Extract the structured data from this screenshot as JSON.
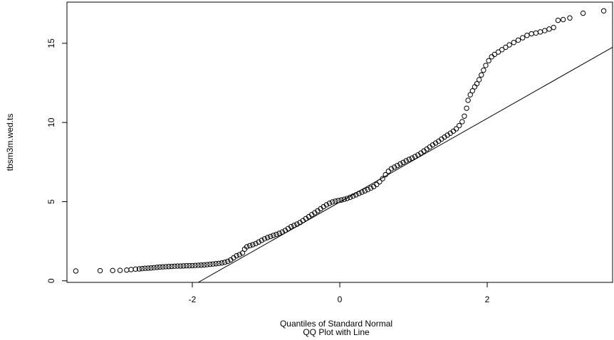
{
  "chart_data": {
    "type": "scatter",
    "title": "",
    "xlabel": "Quantiles of Standard Normal",
    "sublabel": "QQ Plot with Line",
    "ylabel": "tbsm3m.wed.ts",
    "xlim": [
      -3.7,
      3.7
    ],
    "ylim": [
      -0.1,
      17.6
    ],
    "x_ticks": [
      -2,
      0,
      2
    ],
    "y_ticks": [
      0,
      5,
      10,
      15
    ],
    "grid": false,
    "legend": "none",
    "colors": {
      "points": "#000000",
      "line": "#000000",
      "axis": "#000000",
      "background": "#ffffff"
    },
    "reference_line": {
      "x": [
        -1.92,
        3.7
      ],
      "y": [
        -0.1,
        14.75
      ]
    },
    "points": [
      [
        -3.58,
        0.62
      ],
      [
        -3.25,
        0.64
      ],
      [
        -3.08,
        0.65
      ],
      [
        -2.98,
        0.66
      ],
      [
        -2.89,
        0.68
      ],
      [
        -2.83,
        0.71
      ],
      [
        -2.77,
        0.74
      ],
      [
        -2.72,
        0.75
      ],
      [
        -2.68,
        0.77
      ],
      [
        -2.64,
        0.79
      ],
      [
        -2.6,
        0.8
      ],
      [
        -2.56,
        0.81
      ],
      [
        -2.52,
        0.83
      ],
      [
        -2.48,
        0.85
      ],
      [
        -2.44,
        0.87
      ],
      [
        -2.4,
        0.88
      ],
      [
        -2.36,
        0.89
      ],
      [
        -2.32,
        0.9
      ],
      [
        -2.28,
        0.91
      ],
      [
        -2.24,
        0.92
      ],
      [
        -2.2,
        0.93
      ],
      [
        -2.16,
        0.93
      ],
      [
        -2.12,
        0.94
      ],
      [
        -2.08,
        0.95
      ],
      [
        -2.04,
        0.95
      ],
      [
        -2.0,
        0.96
      ],
      [
        -1.96,
        0.97
      ],
      [
        -1.92,
        0.98
      ],
      [
        -1.88,
        0.99
      ],
      [
        -1.84,
        1.0
      ],
      [
        -1.8,
        1.02
      ],
      [
        -1.76,
        1.04
      ],
      [
        -1.72,
        1.06
      ],
      [
        -1.68,
        1.08
      ],
      [
        -1.64,
        1.1
      ],
      [
        -1.6,
        1.13
      ],
      [
        -1.56,
        1.17
      ],
      [
        -1.52,
        1.23
      ],
      [
        -1.48,
        1.32
      ],
      [
        -1.44,
        1.45
      ],
      [
        -1.4,
        1.58
      ],
      [
        -1.36,
        1.65
      ],
      [
        -1.32,
        1.75
      ],
      [
        -1.29,
        2.0
      ],
      [
        -1.26,
        2.15
      ],
      [
        -1.22,
        2.22
      ],
      [
        -1.18,
        2.28
      ],
      [
        -1.14,
        2.35
      ],
      [
        -1.1,
        2.45
      ],
      [
        -1.06,
        2.55
      ],
      [
        -1.02,
        2.65
      ],
      [
        -0.98,
        2.73
      ],
      [
        -0.94,
        2.8
      ],
      [
        -0.9,
        2.87
      ],
      [
        -0.86,
        2.93
      ],
      [
        -0.82,
        3.0
      ],
      [
        -0.78,
        3.08
      ],
      [
        -0.74,
        3.18
      ],
      [
        -0.7,
        3.3
      ],
      [
        -0.66,
        3.42
      ],
      [
        -0.62,
        3.5
      ],
      [
        -0.58,
        3.58
      ],
      [
        -0.54,
        3.68
      ],
      [
        -0.5,
        3.8
      ],
      [
        -0.46,
        3.93
      ],
      [
        -0.42,
        4.05
      ],
      [
        -0.38,
        4.18
      ],
      [
        -0.34,
        4.3
      ],
      [
        -0.3,
        4.42
      ],
      [
        -0.26,
        4.55
      ],
      [
        -0.22,
        4.68
      ],
      [
        -0.18,
        4.8
      ],
      [
        -0.14,
        4.9
      ],
      [
        -0.1,
        4.98
      ],
      [
        -0.06,
        5.03
      ],
      [
        -0.02,
        5.07
      ],
      [
        0.02,
        5.1
      ],
      [
        0.06,
        5.15
      ],
      [
        0.1,
        5.2
      ],
      [
        0.14,
        5.27
      ],
      [
        0.18,
        5.35
      ],
      [
        0.22,
        5.43
      ],
      [
        0.26,
        5.52
      ],
      [
        0.3,
        5.6
      ],
      [
        0.34,
        5.68
      ],
      [
        0.38,
        5.76
      ],
      [
        0.42,
        5.85
      ],
      [
        0.46,
        5.95
      ],
      [
        0.5,
        6.08
      ],
      [
        0.54,
        6.25
      ],
      [
        0.58,
        6.45
      ],
      [
        0.62,
        6.7
      ],
      [
        0.66,
        6.92
      ],
      [
        0.7,
        7.08
      ],
      [
        0.74,
        7.18
      ],
      [
        0.78,
        7.28
      ],
      [
        0.82,
        7.38
      ],
      [
        0.86,
        7.48
      ],
      [
        0.9,
        7.58
      ],
      [
        0.94,
        7.67
      ],
      [
        0.98,
        7.75
      ],
      [
        1.02,
        7.85
      ],
      [
        1.06,
        7.95
      ],
      [
        1.1,
        8.07
      ],
      [
        1.14,
        8.2
      ],
      [
        1.18,
        8.32
      ],
      [
        1.22,
        8.45
      ],
      [
        1.26,
        8.58
      ],
      [
        1.3,
        8.7
      ],
      [
        1.34,
        8.82
      ],
      [
        1.38,
        8.95
      ],
      [
        1.42,
        9.08
      ],
      [
        1.46,
        9.2
      ],
      [
        1.5,
        9.32
      ],
      [
        1.54,
        9.45
      ],
      [
        1.58,
        9.6
      ],
      [
        1.62,
        9.8
      ],
      [
        1.66,
        10.05
      ],
      [
        1.69,
        10.4
      ],
      [
        1.72,
        10.9
      ],
      [
        1.74,
        11.4
      ],
      [
        1.77,
        11.75
      ],
      [
        1.8,
        12.0
      ],
      [
        1.83,
        12.25
      ],
      [
        1.86,
        12.45
      ],
      [
        1.89,
        12.7
      ],
      [
        1.92,
        13.0
      ],
      [
        1.95,
        13.3
      ],
      [
        1.98,
        13.6
      ],
      [
        2.02,
        13.9
      ],
      [
        2.06,
        14.15
      ],
      [
        2.1,
        14.3
      ],
      [
        2.15,
        14.45
      ],
      [
        2.2,
        14.6
      ],
      [
        2.25,
        14.75
      ],
      [
        2.3,
        14.9
      ],
      [
        2.36,
        15.05
      ],
      [
        2.42,
        15.2
      ],
      [
        2.48,
        15.35
      ],
      [
        2.54,
        15.5
      ],
      [
        2.6,
        15.6
      ],
      [
        2.66,
        15.65
      ],
      [
        2.72,
        15.72
      ],
      [
        2.78,
        15.8
      ],
      [
        2.84,
        15.9
      ],
      [
        2.9,
        16.0
      ],
      [
        2.96,
        16.45
      ],
      [
        3.03,
        16.5
      ],
      [
        3.12,
        16.6
      ],
      [
        3.3,
        16.9
      ],
      [
        3.58,
        17.05
      ]
    ]
  }
}
